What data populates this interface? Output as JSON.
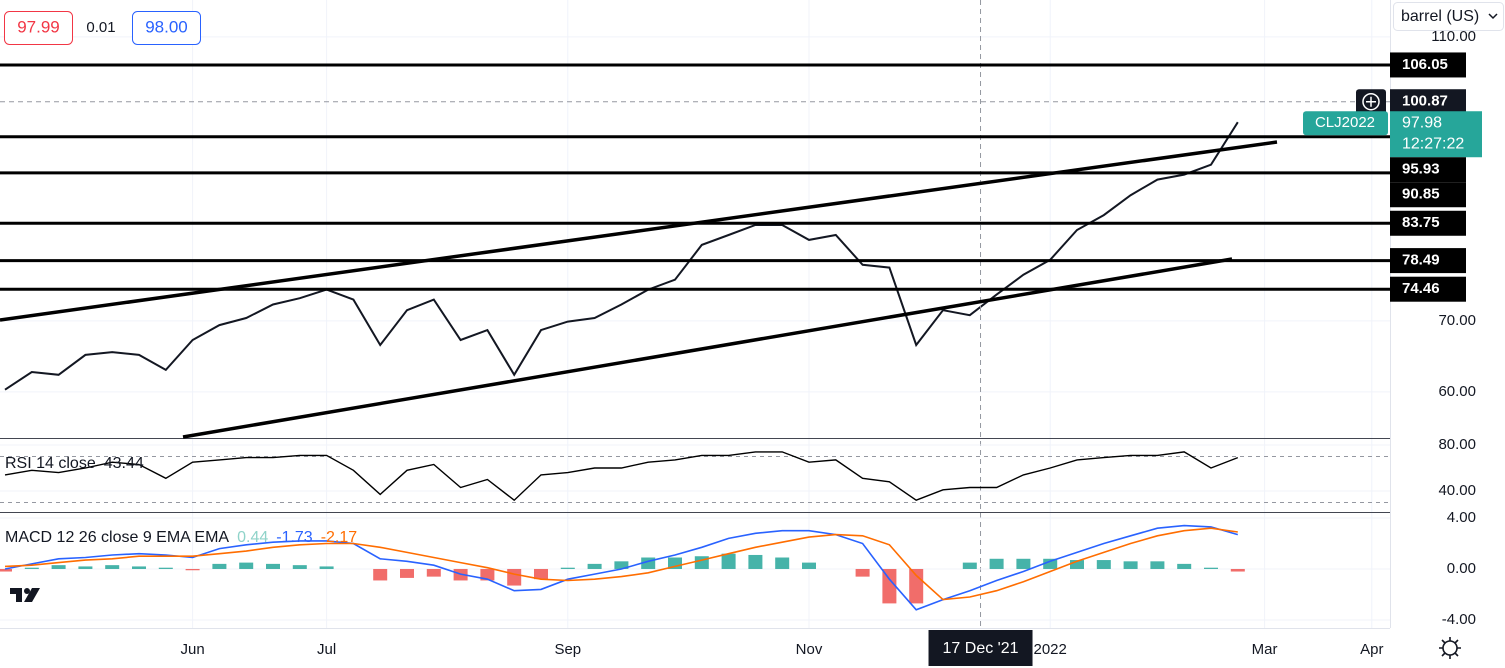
{
  "header": {
    "bid": "97.99",
    "spread": "0.01",
    "ask": "98.00",
    "unit": "barrel (US)"
  },
  "chart_data": [
    {
      "type": "line",
      "symbol": "CLJ2022",
      "last_price": 97.98,
      "countdown": "12:27:22",
      "last_price_color": "#26a69a",
      "categories": [
        null,
        null,
        null,
        null,
        null,
        null,
        null,
        "Jun",
        null,
        null,
        null,
        null,
        "Jul",
        null,
        null,
        null,
        null,
        null,
        null,
        null,
        null,
        "Sep",
        null,
        null,
        null,
        null,
        null,
        null,
        null,
        null,
        "Nov",
        null,
        null,
        null,
        null,
        null,
        null,
        null,
        null,
        "2022",
        null,
        null,
        null,
        null,
        null,
        null,
        null,
        "Mar",
        null,
        null,
        null,
        "Apr"
      ],
      "series": [
        {
          "color": "#131722",
          "values": [
            60.3,
            62.8,
            62.4,
            65.2,
            65.6,
            65.2,
            63.1,
            67.3,
            69.4,
            70.4,
            72.3,
            73.2,
            74.4,
            73.0,
            66.6,
            71.5,
            73.0,
            67.3,
            68.7,
            62.4,
            68.7,
            69.9,
            70.4,
            72.3,
            74.4,
            75.8,
            80.7,
            82.1,
            83.5,
            83.5,
            81.4,
            82.1,
            77.9,
            77.5,
            66.6,
            71.5,
            70.8,
            73.7,
            76.5,
            78.6,
            82.8,
            84.9,
            87.7,
            89.9,
            90.6,
            92.0,
            97.98,
            null,
            null,
            null,
            null,
            null
          ]
        }
      ],
      "ylim": [
        53.5,
        115.2
      ],
      "yticks": [
        {
          "value": 60,
          "label": "60.00"
        },
        {
          "value": 70,
          "label": "70.00"
        },
        {
          "value": 110,
          "label": "110.00"
        }
      ],
      "levels": [
        106.05,
        95.93,
        90.85,
        83.75,
        78.49,
        74.46
      ],
      "level_color": "#000000",
      "crosshair_price": 100.87,
      "crosshair_date": "17 Dec '21",
      "grid": true
    },
    {
      "type": "line",
      "title": "RSI 14 close",
      "value": 43.44,
      "series": [
        {
          "color": "#000000",
          "values": [
            54,
            58,
            56,
            60,
            65,
            63,
            51,
            65,
            67,
            69,
            69,
            71,
            71,
            58,
            37,
            58,
            63,
            43,
            50,
            32,
            54,
            56,
            60,
            60,
            65,
            67,
            71,
            71,
            74,
            74,
            65,
            67,
            51,
            48,
            32,
            41,
            43,
            43,
            54,
            60,
            67,
            69,
            71,
            71,
            74,
            60,
            69,
            null,
            null,
            null,
            null,
            null
          ]
        }
      ],
      "ylim": [
        21.7,
        86.1
      ],
      "yticks": [
        {
          "value": 40,
          "label": "40.00"
        },
        {
          "value": 80,
          "label": "80.00"
        }
      ],
      "bands": [
        30,
        70
      ]
    },
    {
      "type": "macd",
      "title": "MACD 12 26 close 9 EMA EMA",
      "legend_values": [
        0.44,
        -1.73,
        -2.17
      ],
      "legend_colors": [
        "#8fd3c9",
        "#2962ff",
        "#ff6d00"
      ],
      "histogram": {
        "up_color": "#26a69a",
        "down_color": "#ef5350",
        "values": [
          -0.2,
          0.1,
          0.3,
          0.2,
          0.3,
          0.2,
          0.1,
          -0.1,
          0.4,
          0.5,
          0.4,
          0.3,
          0.2,
          0,
          -0.9,
          -0.7,
          -0.6,
          -0.9,
          -0.9,
          -1.3,
          -0.8,
          0.1,
          0.4,
          0.6,
          0.9,
          0.9,
          1.0,
          1.2,
          1.1,
          0.9,
          0.5,
          0,
          -0.6,
          -2.7,
          -2.7,
          0,
          0.5,
          0.8,
          0.8,
          0.8,
          0.7,
          0.7,
          0.6,
          0.6,
          0.4,
          0.1,
          -0.2,
          null,
          null,
          null,
          null,
          null
        ]
      },
      "series": [
        {
          "color": "#2962ff",
          "values": [
            0,
            0.4,
            0.8,
            0.9,
            1.1,
            1.2,
            1.1,
            0.9,
            1.6,
            1.9,
            2.1,
            2.2,
            2.2,
            2.0,
            0.8,
            0.6,
            0.3,
            -0.4,
            -0.8,
            -1.7,
            -1.6,
            -0.8,
            -0.4,
            0,
            0.6,
            1.1,
            1.7,
            2.4,
            2.8,
            3.0,
            3.0,
            2.7,
            2.0,
            -0.8,
            -3.2,
            -2.4,
            -1.7,
            -0.9,
            -0.2,
            0.6,
            1.3,
            2.0,
            2.6,
            3.2,
            3.4,
            3.3,
            2.7,
            null,
            null,
            null,
            null,
            null
          ]
        },
        {
          "color": "#ff6d00",
          "values": [
            0.2,
            0.3,
            0.5,
            0.7,
            0.8,
            1.0,
            1.0,
            1.0,
            1.2,
            1.4,
            1.7,
            1.9,
            2.0,
            2.0,
            1.7,
            1.3,
            0.9,
            0.5,
            0.1,
            -0.4,
            -0.8,
            -0.9,
            -0.8,
            -0.6,
            -0.3,
            0.2,
            0.7,
            1.2,
            1.7,
            2.1,
            2.5,
            2.7,
            2.6,
            1.9,
            -0.5,
            -2.4,
            -2.2,
            -1.7,
            -1.0,
            -0.2,
            0.6,
            1.3,
            2.0,
            2.6,
            3.0,
            3.2,
            2.9,
            null,
            null,
            null,
            null,
            null
          ]
        }
      ],
      "ylim": [
        -4.63,
        4.47
      ],
      "yticks": [
        {
          "value": -4,
          "label": "-4.00"
        },
        {
          "value": 0,
          "label": "0.00"
        },
        {
          "value": 4,
          "label": "4.00"
        }
      ]
    }
  ]
}
